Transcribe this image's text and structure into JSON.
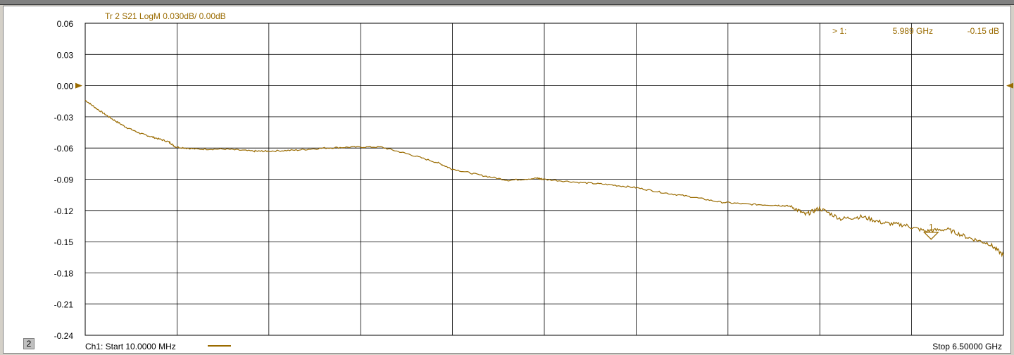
{
  "chart_data": {
    "type": "line",
    "trace_header": "Tr 2  S21 LogM 0.030dB/  0.00dB",
    "channel_number": "2",
    "start_label": "Ch1: Start  10.0000 MHz",
    "stop_label": "Stop  6.50000 GHz",
    "ylim": [
      -0.24,
      0.06
    ],
    "xlim_ghz": [
      0.01,
      6.5
    ],
    "y_ticks": [
      "0.06",
      "0.03",
      "0.00",
      "-0.03",
      "-0.06",
      "-0.09",
      "-0.12",
      "-0.15",
      "-0.18",
      "-0.21",
      "-0.24"
    ],
    "y_tick_values": [
      0.06,
      0.03,
      0.0,
      -0.03,
      -0.06,
      -0.09,
      -0.12,
      -0.15,
      -0.18,
      -0.21,
      -0.24
    ],
    "x_divisions": 10,
    "grid": true,
    "reference_level": 0.0,
    "trace_color": "#9a6b00",
    "marker": {
      "label": "> 1:",
      "freq_text": "5.989 GHz",
      "value_text": "-0.15 dB",
      "freq_ghz": 5.989,
      "value_db": -0.145,
      "id": "1"
    },
    "series": [
      {
        "x_ghz": [
          0.01,
          0.1,
          0.2,
          0.3,
          0.4,
          0.5,
          0.6,
          0.65,
          0.8,
          1.0,
          1.2,
          1.3,
          1.5,
          1.7,
          1.9,
          2.1,
          2.3,
          2.5,
          2.6,
          2.8,
          3.0,
          3.2,
          3.25,
          3.5,
          3.7,
          3.9,
          4.1,
          4.3,
          4.5,
          4.7,
          4.9,
          5.0,
          5.1,
          5.2,
          5.35,
          5.5,
          5.65,
          5.8,
          5.95,
          6.1,
          6.25,
          6.4,
          6.5
        ],
        "y_db": [
          -0.014,
          -0.023,
          -0.032,
          -0.04,
          -0.046,
          -0.05,
          -0.054,
          -0.059,
          -0.061,
          -0.061,
          -0.063,
          -0.063,
          -0.062,
          -0.06,
          -0.059,
          -0.059,
          -0.066,
          -0.074,
          -0.08,
          -0.086,
          -0.091,
          -0.089,
          -0.09,
          -0.093,
          -0.095,
          -0.098,
          -0.103,
          -0.107,
          -0.112,
          -0.114,
          -0.115,
          -0.116,
          -0.124,
          -0.118,
          -0.128,
          -0.126,
          -0.132,
          -0.134,
          -0.14,
          -0.138,
          -0.146,
          -0.152,
          -0.163
        ]
      }
    ]
  }
}
